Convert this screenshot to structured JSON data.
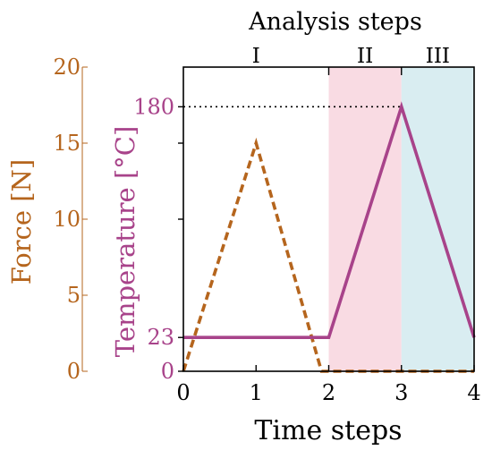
{
  "chart_data": {
    "type": "line",
    "xlabel": "Time steps",
    "top_title": "Analysis steps",
    "x_ticks": [
      0,
      1,
      2,
      3,
      4
    ],
    "xlim": [
      0,
      4
    ],
    "left_axis": {
      "label": "Force [N]",
      "ticks": [
        0,
        5,
        10,
        15,
        20
      ],
      "ylim": [
        0,
        20
      ],
      "color": "#b5651d"
    },
    "right_axis": {
      "label": "Temperature [°C]",
      "ticks": [
        0,
        23,
        180
      ],
      "ylim": [
        0,
        207
      ],
      "color": "#a8438a"
    },
    "analysis_steps": [
      {
        "label": "I",
        "start": 0,
        "end": 2,
        "fill": "#ffffff"
      },
      {
        "label": "II",
        "start": 2,
        "end": 3,
        "fill": "#f9dbe3"
      },
      {
        "label": "III",
        "start": 3,
        "end": 4,
        "fill": "#d9edf1"
      }
    ],
    "series": [
      {
        "name": "Force",
        "axis": "left",
        "style": "dashed",
        "color": "#b5651d",
        "x": [
          0,
          1,
          1.9,
          4
        ],
        "y": [
          0,
          15,
          0,
          0
        ]
      },
      {
        "name": "Temperature",
        "axis": "right",
        "style": "solid",
        "color": "#a8438a",
        "x": [
          0,
          2,
          3,
          4
        ],
        "y": [
          23,
          23,
          180,
          23
        ]
      }
    ],
    "reference_line": {
      "axis": "right",
      "y": 180,
      "x_end": 3,
      "style": "dotted",
      "color": "#000000"
    }
  }
}
